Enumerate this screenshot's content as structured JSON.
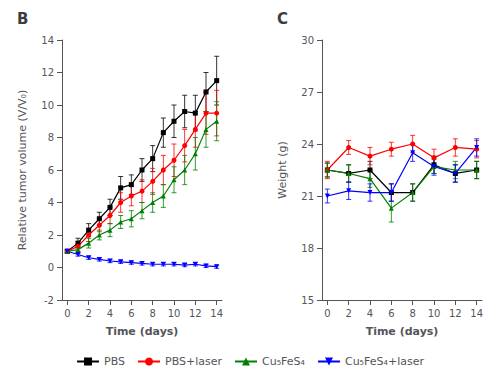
{
  "chart_data": [
    {
      "type": "line",
      "title": "B",
      "xlabel": "Time (days)",
      "ylabel": "Relative tumor volume (V/V₀)",
      "x": [
        0,
        1,
        2,
        3,
        4,
        5,
        6,
        7,
        8,
        9,
        10,
        11,
        12,
        13,
        14
      ],
      "xlim": [
        -0.5,
        14.5
      ],
      "xticks": [
        0,
        2,
        4,
        6,
        8,
        10,
        12,
        14
      ],
      "ylim": [
        -2,
        14
      ],
      "yticks": [
        -2,
        0,
        2,
        4,
        6,
        8,
        10,
        12,
        14
      ],
      "grid": false,
      "legend": "bottom",
      "series": [
        {
          "name": "PBS",
          "color": "#000000",
          "marker": "square",
          "values": [
            1.0,
            1.5,
            2.3,
            3.0,
            3.7,
            4.9,
            5.1,
            6.0,
            6.7,
            8.3,
            9.0,
            9.6,
            9.5,
            10.8,
            11.5
          ],
          "errors": [
            0.1,
            0.3,
            0.4,
            0.4,
            0.5,
            0.7,
            0.6,
            0.7,
            0.8,
            0.9,
            1.0,
            1.0,
            1.1,
            1.2,
            1.5
          ]
        },
        {
          "name": "PBS+laser",
          "color": "#ff0000",
          "marker": "circle",
          "values": [
            1.0,
            1.3,
            2.0,
            2.6,
            3.2,
            4.0,
            4.4,
            4.7,
            5.3,
            6.0,
            6.6,
            7.5,
            8.5,
            9.5,
            9.5
          ],
          "errors": [
            0.1,
            0.3,
            0.4,
            0.4,
            0.5,
            0.6,
            0.6,
            0.7,
            0.8,
            0.9,
            1.0,
            1.0,
            1.1,
            1.3,
            1.4
          ]
        },
        {
          "name": "Cu₅FeS₄",
          "color": "#008000",
          "marker": "triangle",
          "values": [
            1.0,
            1.1,
            1.5,
            2.0,
            2.3,
            2.8,
            3.0,
            3.5,
            4.0,
            4.4,
            5.4,
            6.0,
            7.0,
            8.5,
            9.0
          ],
          "errors": [
            0.1,
            0.2,
            0.3,
            0.3,
            0.4,
            0.4,
            0.5,
            0.5,
            0.6,
            0.7,
            0.8,
            0.9,
            1.0,
            1.1,
            1.2
          ]
        },
        {
          "name": "Cu₅FeS₄+laser",
          "color": "#0000ff",
          "marker": "triangle-down",
          "values": [
            1.0,
            0.8,
            0.6,
            0.5,
            0.4,
            0.35,
            0.3,
            0.25,
            0.2,
            0.2,
            0.2,
            0.15,
            0.2,
            0.1,
            0.05
          ],
          "errors": [
            0.05,
            0.1,
            0.1,
            0.1,
            0.1,
            0.1,
            0.1,
            0.1,
            0.1,
            0.1,
            0.1,
            0.1,
            0.1,
            0.1,
            0.1
          ]
        }
      ]
    },
    {
      "type": "line",
      "title": "C",
      "xlabel": "Time (days)",
      "ylabel": "Weight (g)",
      "x": [
        0,
        2,
        4,
        6,
        8,
        10,
        12,
        14
      ],
      "xlim": [
        -0.5,
        14.5
      ],
      "xticks": [
        0,
        2,
        4,
        6,
        8,
        10,
        12,
        14
      ],
      "ylim": [
        15,
        30
      ],
      "yticks": [
        15,
        18,
        21,
        24,
        27,
        30
      ],
      "grid": false,
      "legend": "bottom",
      "series": [
        {
          "name": "PBS",
          "color": "#000000",
          "marker": "square",
          "values": [
            22.5,
            22.3,
            22.5,
            21.2,
            21.2,
            22.8,
            22.3,
            22.5
          ],
          "errors": [
            0.4,
            0.5,
            0.5,
            0.5,
            0.5,
            0.5,
            0.5,
            0.5
          ]
        },
        {
          "name": "PBS+laser",
          "color": "#ff0000",
          "marker": "circle",
          "values": [
            22.5,
            23.8,
            23.3,
            23.7,
            24.0,
            23.2,
            23.8,
            23.7
          ],
          "errors": [
            0.5,
            0.4,
            0.5,
            0.4,
            0.5,
            0.5,
            0.5,
            0.5
          ]
        },
        {
          "name": "Cu₅FeS₄",
          "color": "#008000",
          "marker": "triangle",
          "values": [
            22.5,
            22.3,
            22.0,
            20.3,
            21.2,
            22.7,
            22.5,
            22.5
          ],
          "errors": [
            0.4,
            0.5,
            0.5,
            0.8,
            0.5,
            0.4,
            0.5,
            0.5
          ]
        },
        {
          "name": "Cu₅FeS₄+laser",
          "color": "#0000ff",
          "marker": "triangle-down",
          "values": [
            21.0,
            21.3,
            21.2,
            21.2,
            23.5,
            22.7,
            22.3,
            23.8
          ],
          "errors": [
            0.4,
            0.5,
            0.5,
            0.5,
            0.5,
            0.5,
            0.5,
            0.5
          ]
        }
      ]
    }
  ]
}
